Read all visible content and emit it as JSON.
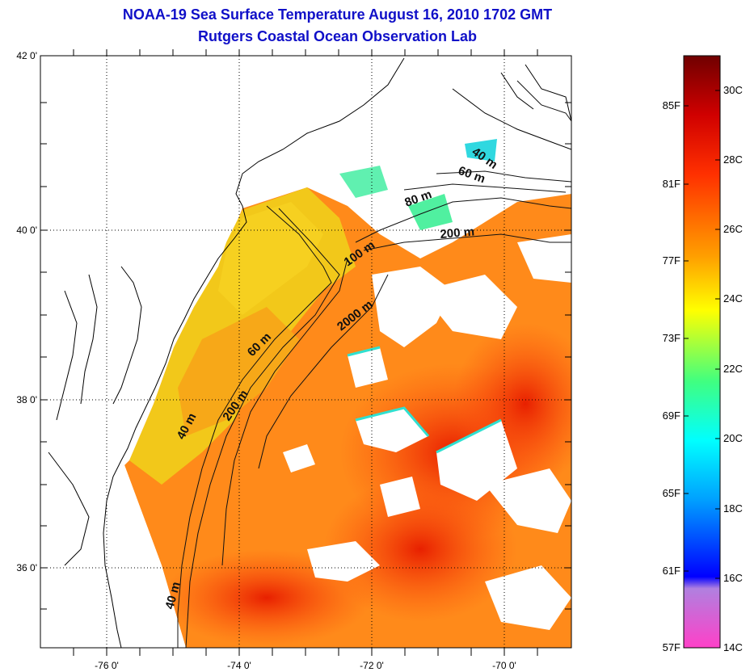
{
  "header": {
    "title": "NOAA-19 Sea Surface Temperature August 16, 2010 1702 GMT",
    "subtitle": "Rutgers Coastal Ocean Observation Lab"
  },
  "map": {
    "lat_labels": [
      "42 0'",
      "40 0'",
      "38 0'",
      "36 0'"
    ],
    "lon_labels": [
      "-76 0'",
      "-74 0'",
      "-72 0'",
      "-70 0'"
    ],
    "grid": "dotted",
    "contour_labels": [
      "40 m",
      "60 m",
      "80 m",
      "200 m",
      "100 m",
      "2000 m",
      "60 m",
      "40 m",
      "200 m",
      "40 m"
    ]
  },
  "colorbar": {
    "fahrenheit": [
      "85F",
      "81F",
      "77F",
      "73F",
      "69F",
      "65F",
      "61F",
      "57F"
    ],
    "celsius": [
      "30C",
      "28C",
      "26C",
      "24C",
      "22C",
      "20C",
      "18C",
      "16C",
      "14C"
    ],
    "colors": [
      "#ff40c8",
      "#b080e0",
      "#0000ff",
      "#00a0ff",
      "#00ffff",
      "#40ff80",
      "#ffff00",
      "#ffa000",
      "#ff3000",
      "#c00000",
      "#700000"
    ]
  },
  "palette": {
    "sst_warm": "#ff5a10",
    "sst_orange": "#ff8a1a",
    "sst_yellow": "#f2c81a",
    "sst_cool": "#40f0c0",
    "coast": "#000000",
    "cloud": "#ffffff"
  }
}
